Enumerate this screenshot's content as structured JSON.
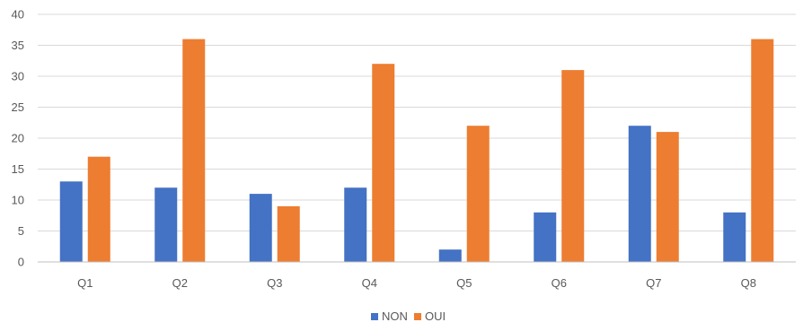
{
  "chart_data": {
    "type": "bar",
    "categories": [
      "Q1",
      "Q2",
      "Q3",
      "Q4",
      "Q5",
      "Q6",
      "Q7",
      "Q8"
    ],
    "series": [
      {
        "name": "NON",
        "color": "#4472c4",
        "values": [
          13,
          12,
          11,
          12,
          2,
          8,
          22,
          8
        ]
      },
      {
        "name": "OUI",
        "color": "#ed7d31",
        "values": [
          17,
          36,
          9,
          32,
          22,
          31,
          21,
          36
        ]
      }
    ],
    "ylim": [
      0,
      40
    ],
    "yticks": [
      "0",
      "5",
      "10",
      "15",
      "20",
      "25",
      "30",
      "35",
      "40"
    ],
    "grid": true,
    "legend_position": "bottom"
  }
}
